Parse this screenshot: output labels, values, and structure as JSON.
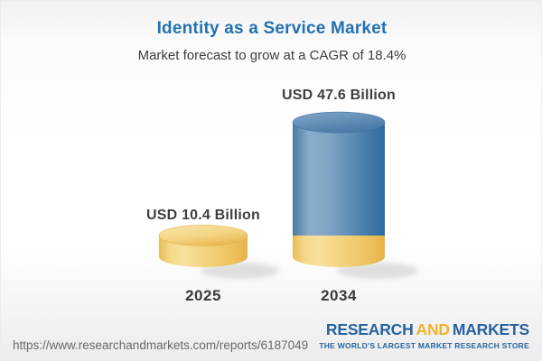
{
  "chart_data": {
    "type": "bar",
    "subtype": "3d-cylinder-stacked",
    "title": "Identity as a Service Market",
    "subtitle": "Market forecast to grow at a CAGR of 18.4%",
    "categories": [
      "2025",
      "2034"
    ],
    "values": [
      10.4,
      47.6
    ],
    "value_labels": [
      "USD 10.4 Billion",
      "USD 47.6 Billion"
    ],
    "unit": "USD Billion",
    "cagr_percent": 18.4,
    "legend": "none",
    "grid": false,
    "note": "2034 cylinder shows gold base segment equal to 2025 value with blue growth segment above",
    "colors": {
      "base_gold_light": "#f8e09c",
      "base_gold_dark": "#e5b24a",
      "growth_blue_light": "#8aadca",
      "growth_blue_dark": "#2e699f",
      "title_blue": "#2372b0",
      "text_dark": "#3f3f3f"
    }
  },
  "footer": {
    "url": "https://www.researchandmarkets.com/reports/6187049",
    "logo": {
      "research": "RESEARCH",
      "and": "AND",
      "markets": "MARKETS",
      "tagline": "THE WORLD'S LARGEST MARKET RESEARCH STORE"
    }
  }
}
